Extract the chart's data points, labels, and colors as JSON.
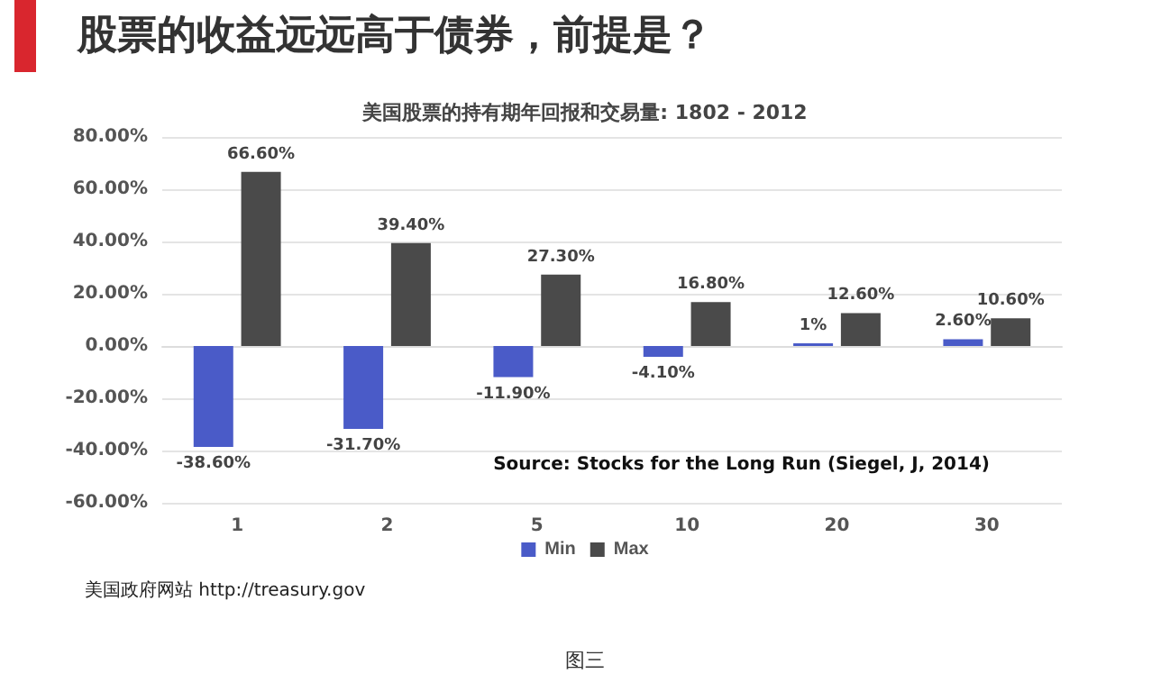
{
  "chart_data": {
    "type": "bar",
    "title": "股票的收益远远高于债券，前提是？",
    "subtitle": "美国股票的持有期年回报和交易量: 1802 - 2012",
    "categories": [
      "1",
      "2",
      "5",
      "10",
      "20",
      "30"
    ],
    "series": [
      {
        "name": "Min",
        "color": "#4a5bc8",
        "values": [
          -38.6,
          -31.7,
          -11.9,
          -4.1,
          1,
          2.6
        ],
        "value_labels": [
          "-38.60%",
          "-31.70%",
          "-11.90%",
          "-4.10%",
          "1%",
          "2.60%"
        ]
      },
      {
        "name": "Max",
        "color": "#4a4a4a",
        "values": [
          66.6,
          39.4,
          27.3,
          16.8,
          12.6,
          10.6
        ],
        "value_labels": [
          "66.60%",
          "39.40%",
          "27.30%",
          "16.80%",
          "12.60%",
          "10.60%"
        ]
      }
    ],
    "ylim": [
      -60,
      80
    ],
    "yticks": [
      {
        "value": -60,
        "label": "-60.00%"
      },
      {
        "value": -40,
        "label": "-40.00%"
      },
      {
        "value": -20,
        "label": "-20.00%"
      },
      {
        "value": 0,
        "label": "0.00%"
      },
      {
        "value": 20,
        "label": "20.00%"
      },
      {
        "value": 40,
        "label": "40.00%"
      },
      {
        "value": 60,
        "label": "60.00%"
      },
      {
        "value": 80,
        "label": "80.00%"
      }
    ],
    "grid": "y",
    "legend": "bottom",
    "annotations": [
      "Source: Stocks for the Long Run (Siegel, J, 2014)",
      "美国政府网站 http://treasury.gov",
      "图三"
    ]
  }
}
